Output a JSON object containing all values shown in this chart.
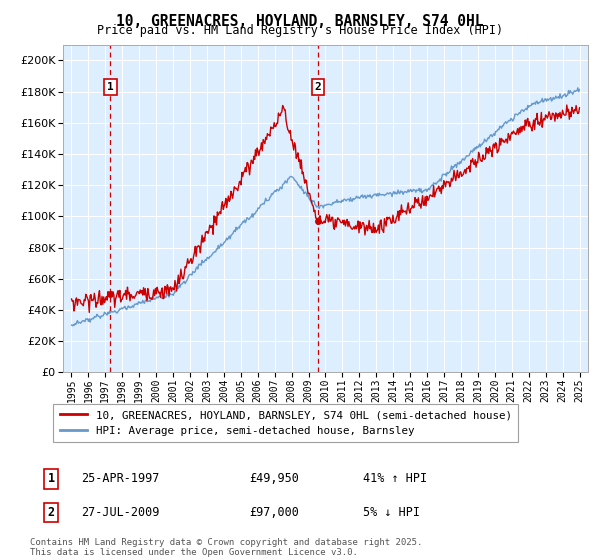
{
  "title": "10, GREENACRES, HOYLAND, BARNSLEY, S74 0HL",
  "subtitle": "Price paid vs. HM Land Registry's House Price Index (HPI)",
  "legend_line1": "10, GREENACRES, HOYLAND, BARNSLEY, S74 0HL (semi-detached house)",
  "legend_line2": "HPI: Average price, semi-detached house, Barnsley",
  "marker1_label": "1",
  "marker1_date": "25-APR-1997",
  "marker1_price": "£49,950",
  "marker1_hpi": "41% ↑ HPI",
  "marker1_year": 1997.3,
  "marker1_value": 49950,
  "marker2_label": "2",
  "marker2_date": "27-JUL-2009",
  "marker2_price": "£97,000",
  "marker2_hpi": "5% ↓ HPI",
  "marker2_year": 2009.55,
  "marker2_value": 97000,
  "ylim": [
    0,
    210000
  ],
  "yticks": [
    0,
    20000,
    40000,
    60000,
    80000,
    100000,
    120000,
    140000,
    160000,
    180000,
    200000
  ],
  "xlim": [
    1994.5,
    2025.5
  ],
  "red_color": "#cc0000",
  "blue_color": "#6699cc",
  "background_color": "#ddeeff",
  "grid_color": "#c8d8e8",
  "footer": "Contains HM Land Registry data © Crown copyright and database right 2025.\nThis data is licensed under the Open Government Licence v3.0."
}
